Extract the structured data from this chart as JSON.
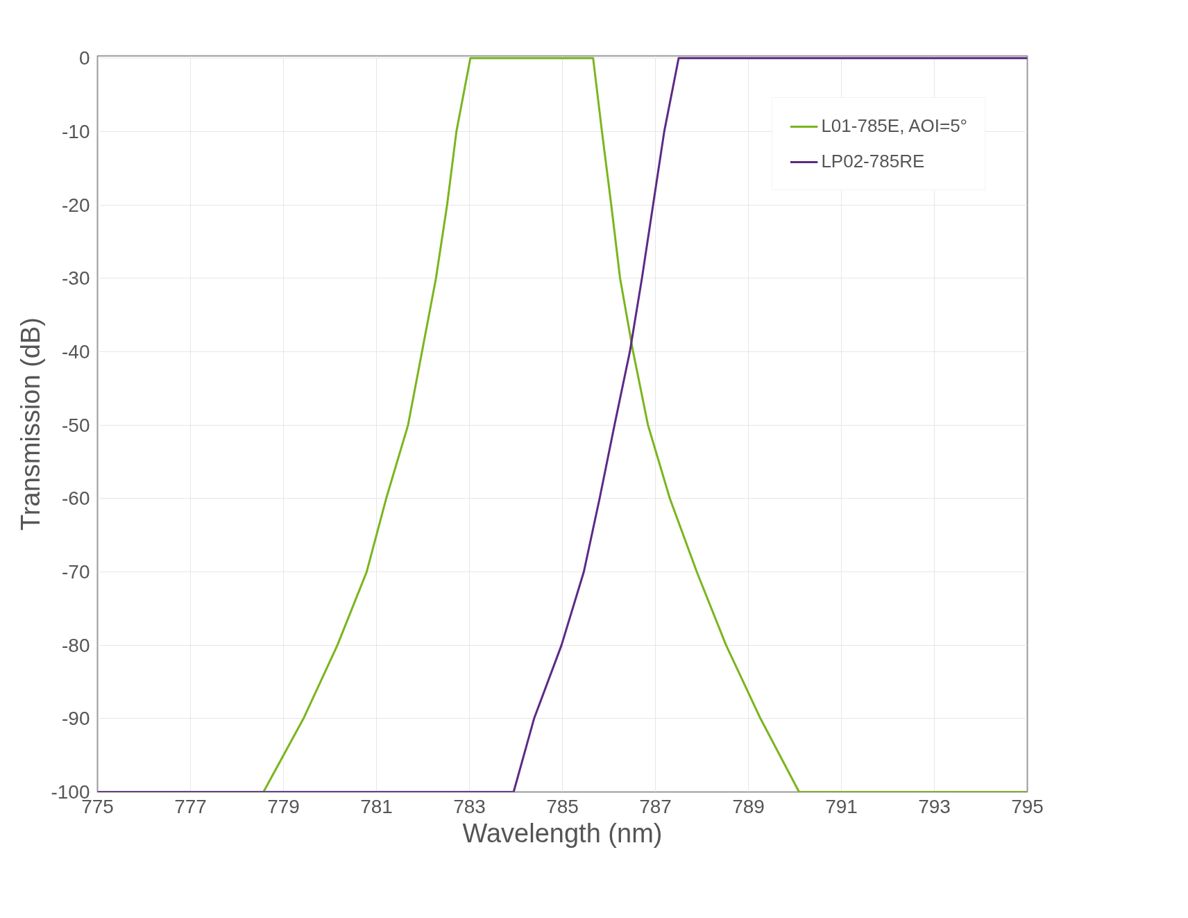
{
  "chart_data": {
    "type": "line",
    "xlabel": "Wavelength (nm)",
    "ylabel": "Transmission (dB)",
    "xlim": [
      775,
      795
    ],
    "ylim": [
      -100,
      0.3
    ],
    "xticks": [
      775,
      777,
      779,
      781,
      783,
      785,
      787,
      789,
      791,
      793,
      795
    ],
    "yticks": [
      0,
      -10,
      -20,
      -30,
      -40,
      -50,
      -60,
      -70,
      -80,
      -90,
      -100
    ],
    "grid": true,
    "legend": "top right",
    "line_style": "solid",
    "marker": "none",
    "series": [
      {
        "name": "L01-785E, AOI=5°",
        "color": "#7ab51d",
        "x": [
          775,
          778.57,
          779.43,
          780.16,
          780.79,
          781.21,
          781.68,
          781.98,
          782.28,
          782.52,
          782.72,
          783.02,
          785.66,
          785.85,
          786.05,
          786.24,
          786.52,
          786.84,
          787.31,
          787.89,
          788.52,
          789.26,
          790.09,
          795
        ],
        "values": [
          -100,
          -100,
          -90,
          -80,
          -70,
          -60,
          -50,
          -40,
          -30,
          -20,
          -10,
          0,
          0,
          -10,
          -20,
          -30,
          -40,
          -50,
          -60,
          -70,
          -80,
          -90,
          -100,
          -100
        ]
      },
      {
        "name": "LP02-785RE",
        "color": "#5b2a86",
        "x": [
          775,
          783.95,
          784.39,
          784.98,
          785.46,
          785.8,
          786.12,
          786.45,
          786.71,
          786.95,
          787.19,
          787.5,
          795
        ],
        "values": [
          -100,
          -100,
          -90,
          -80,
          -70,
          -60,
          -50,
          -40,
          -30,
          -20,
          -10,
          0,
          0
        ]
      }
    ]
  }
}
